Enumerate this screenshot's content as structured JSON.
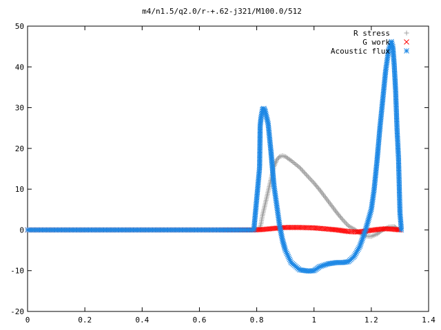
{
  "chart_data": {
    "type": "scatter",
    "title": "m4/n1.5/q2.0/r-+.62-j321/M100.0/512",
    "xlim": [
      0,
      1.4
    ],
    "ylim": [
      -20,
      50
    ],
    "x_ticks": [
      "0",
      "0.2",
      "0.4",
      "0.6",
      "0.8",
      "1",
      "1.2",
      "1.4"
    ],
    "y_ticks": [
      "-20",
      "-10",
      "0",
      "10",
      "20",
      "30",
      "40",
      "50"
    ],
    "legend_position": "top-right",
    "series": [
      {
        "name": "R stress",
        "marker": "plus",
        "color": "#a0a0a0",
        "points": [
          [
            0.0,
            0
          ],
          [
            0.2,
            0
          ],
          [
            0.4,
            0
          ],
          [
            0.6,
            0
          ],
          [
            0.78,
            0
          ],
          [
            0.81,
            0.3
          ],
          [
            0.815,
            1.5
          ],
          [
            0.82,
            3.5
          ],
          [
            0.83,
            6.5
          ],
          [
            0.84,
            9.5
          ],
          [
            0.85,
            12.5
          ],
          [
            0.86,
            15.5
          ],
          [
            0.87,
            17.2
          ],
          [
            0.88,
            18.0
          ],
          [
            0.89,
            18.2
          ],
          [
            0.9,
            18.0
          ],
          [
            0.92,
            17.0
          ],
          [
            0.95,
            15.3
          ],
          [
            0.98,
            13.0
          ],
          [
            1.0,
            11.5
          ],
          [
            1.02,
            9.8
          ],
          [
            1.05,
            7.0
          ],
          [
            1.08,
            4.2
          ],
          [
            1.1,
            2.5
          ],
          [
            1.12,
            1.0
          ],
          [
            1.14,
            0.2
          ],
          [
            1.16,
            -0.8
          ],
          [
            1.18,
            -1.5
          ],
          [
            1.2,
            -1.6
          ],
          [
            1.22,
            -1.0
          ],
          [
            1.24,
            0.0
          ],
          [
            1.26,
            0.7
          ],
          [
            1.28,
            0.8
          ],
          [
            1.29,
            0.3
          ],
          [
            1.3,
            0.0
          ]
        ]
      },
      {
        "name": "G work",
        "marker": "cross",
        "color": "#ff0000",
        "points": [
          [
            0.0,
            0
          ],
          [
            0.2,
            0
          ],
          [
            0.4,
            0
          ],
          [
            0.6,
            0
          ],
          [
            0.8,
            0
          ],
          [
            0.82,
            0.1
          ],
          [
            0.85,
            0.3
          ],
          [
            0.88,
            0.5
          ],
          [
            0.9,
            0.6
          ],
          [
            0.95,
            0.6
          ],
          [
            1.0,
            0.5
          ],
          [
            1.05,
            0.2
          ],
          [
            1.08,
            0.0
          ],
          [
            1.1,
            -0.2
          ],
          [
            1.12,
            -0.4
          ],
          [
            1.15,
            -0.5
          ],
          [
            1.18,
            -0.3
          ],
          [
            1.2,
            -0.1
          ],
          [
            1.22,
            0.1
          ],
          [
            1.25,
            0.3
          ],
          [
            1.27,
            0.2
          ],
          [
            1.3,
            0.0
          ]
        ]
      },
      {
        "name": "Acoustic flux",
        "marker": "star",
        "color": "#1e88e5",
        "points": [
          [
            0.0,
            0
          ],
          [
            0.2,
            0
          ],
          [
            0.4,
            0
          ],
          [
            0.6,
            0
          ],
          [
            0.79,
            0
          ],
          [
            0.81,
            15.3
          ],
          [
            0.812,
            25.5
          ],
          [
            0.815,
            27.5
          ],
          [
            0.82,
            29.5
          ],
          [
            0.825,
            29.8
          ],
          [
            0.83,
            29.0
          ],
          [
            0.84,
            26.0
          ],
          [
            0.85,
            19.0
          ],
          [
            0.86,
            11.0
          ],
          [
            0.87,
            6.0
          ],
          [
            0.88,
            1.0
          ],
          [
            0.89,
            -2.5
          ],
          [
            0.9,
            -5.0
          ],
          [
            0.92,
            -8.0
          ],
          [
            0.95,
            -9.8
          ],
          [
            0.98,
            -10.1
          ],
          [
            1.0,
            -10.0
          ],
          [
            1.02,
            -9.0
          ],
          [
            1.05,
            -8.3
          ],
          [
            1.08,
            -8.0
          ],
          [
            1.1,
            -8.0
          ],
          [
            1.12,
            -7.8
          ],
          [
            1.14,
            -6.5
          ],
          [
            1.16,
            -4.0
          ],
          [
            1.18,
            0.0
          ],
          [
            1.2,
            5.0
          ],
          [
            1.21,
            10.0
          ],
          [
            1.22,
            17.0
          ],
          [
            1.23,
            25.0
          ],
          [
            1.24,
            32.0
          ],
          [
            1.25,
            39.0
          ],
          [
            1.26,
            44.0
          ],
          [
            1.27,
            46.2
          ],
          [
            1.275,
            45.0
          ],
          [
            1.28,
            40.5
          ],
          [
            1.285,
            34.0
          ],
          [
            1.29,
            24.5
          ],
          [
            1.295,
            17.5
          ],
          [
            1.3,
            4.2
          ],
          [
            1.305,
            0.0
          ]
        ]
      }
    ]
  }
}
